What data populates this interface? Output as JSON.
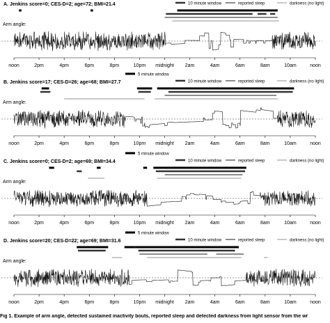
{
  "figure": {
    "caption_fragment": "Fig 1. Example of arm angle, detected sustained inactivity bouts, reported sleep and detected darkness from light sensor from the wr"
  },
  "legend_labels": {
    "window5": "5 minute window",
    "window10": "10 minute window",
    "sleep": "reported sleep",
    "dark": "darkness (no light)"
  },
  "colors": {
    "window5": "#000000",
    "window10": "#333333",
    "sleep": "#8c8c8c",
    "dark": "#c8c8c8",
    "signal": "#111111",
    "signal_night": "#555555",
    "reference": "#777777"
  },
  "chart_data": [
    {
      "type": "line",
      "panel": "A",
      "title": "A. Jenkins score=0; CES-D=2; age=72; BMI=21.4",
      "ylabel": "Arm angle:",
      "x_tick_labels": [
        "noon",
        "2pm",
        "4pm",
        "6pm",
        "8pm",
        "10pm",
        "midnight",
        "2am",
        "4am",
        "6am",
        "8am",
        "10am",
        "noon"
      ],
      "x_range_hours": [
        12,
        36
      ],
      "night": [
        24.1,
        32.6
      ],
      "volatility_day": 0.9,
      "volatility_night": 0.08,
      "seed": 11,
      "bars": {
        "window5": [
          [
            12.4,
            12.6
          ],
          [
            18.1,
            18.3
          ],
          [
            25.0,
            33.0
          ]
        ],
        "window10": [
          [
            24.1,
            31.0
          ],
          [
            31.4,
            32.1
          ],
          [
            32.4,
            32.8
          ]
        ],
        "sleep": [
          [
            24.0,
            33.0
          ]
        ],
        "dark": [
          [
            24.6,
            33.1
          ]
        ]
      }
    },
    {
      "type": "line",
      "panel": "B",
      "title": "B. Jenkins score=17; CES-D=26; age=68; BMI=27.7",
      "ylabel": "Arm angle:",
      "x_tick_labels": [
        "noon",
        "2pm",
        "4pm",
        "6pm",
        "8pm",
        "10pm",
        "midnight",
        "2am",
        "4am",
        "6am",
        "8am",
        "10am",
        "noon"
      ],
      "x_range_hours": [
        12,
        36
      ],
      "night": [
        20.9,
        33.0
      ],
      "volatility_day": 0.85,
      "volatility_night": 0.12,
      "seed": 23,
      "bars": {
        "window5": [
          [
            14.2,
            14.8
          ],
          [
            21.8,
            23.0
          ],
          [
            23.4,
            34.3
          ]
        ],
        "window10": [
          [
            14.1,
            14.9
          ],
          [
            21.9,
            22.9
          ],
          [
            24.3,
            34.2
          ]
        ],
        "sleep": [
          [
            24.0,
            32.9
          ]
        ],
        "dark": [
          [
            16.0,
            22.4
          ],
          [
            23.2,
            33.0
          ]
        ]
      }
    },
    {
      "type": "line",
      "panel": "C",
      "title": "C. Jenkins score=0; CES-D=2; age=69; BMI=34.4",
      "ylabel": "Arm angle:",
      "x_tick_labels": [
        "noon",
        "2pm",
        "4pm",
        "6pm",
        "8pm",
        "10pm",
        "midnight",
        "2am",
        "4am",
        "6am",
        "8am",
        "10am",
        "noon"
      ],
      "x_range_hours": [
        12,
        36
      ],
      "night": [
        22.6,
        31.6
      ],
      "volatility_day": 0.8,
      "volatility_night": 0.1,
      "seed": 37,
      "bars": {
        "window5": [
          [
            14.8,
            15.2
          ],
          [
            18.6,
            18.9
          ],
          [
            22.3,
            22.6
          ],
          [
            23.1,
            30.5
          ]
        ],
        "window10": [
          [
            17.0,
            17.4
          ],
          [
            23.3,
            30.4
          ]
        ],
        "sleep": [
          [
            24.0,
            30.2
          ]
        ],
        "dark": [
          [
            17.9,
            19.2
          ],
          [
            23.4,
            30.1
          ]
        ]
      }
    },
    {
      "type": "line",
      "panel": "D",
      "title": "D. Jenkins score=20; CES-D=22; age=69; BMI=31.6",
      "ylabel": "Arm angle:",
      "x_tick_labels": [
        "noon",
        "2pm",
        "4pm",
        "6pm",
        "8pm",
        "10pm",
        "midnight",
        "2am",
        "4am",
        "6am",
        "8am",
        "10am",
        "noon"
      ],
      "x_range_hours": [
        12,
        36
      ],
      "night": [
        21.2,
        30.5
      ],
      "volatility_day": 0.85,
      "volatility_night": 0.12,
      "seed": 51,
      "bars": {
        "window5": [
          [
            17.0,
            19.5
          ],
          [
            20.8,
            21.6
          ],
          [
            21.6,
            29.9
          ]
        ],
        "window10": [
          [
            17.1,
            19.3
          ],
          [
            21.9,
            29.6
          ]
        ],
        "sleep": [
          [
            22.0,
            27.4
          ],
          [
            28.1,
            30.3
          ]
        ],
        "dark": [
          [
            19.8,
            20.6
          ],
          [
            22.6,
            30.1
          ],
          [
            31.9,
            32.2
          ]
        ]
      }
    }
  ]
}
